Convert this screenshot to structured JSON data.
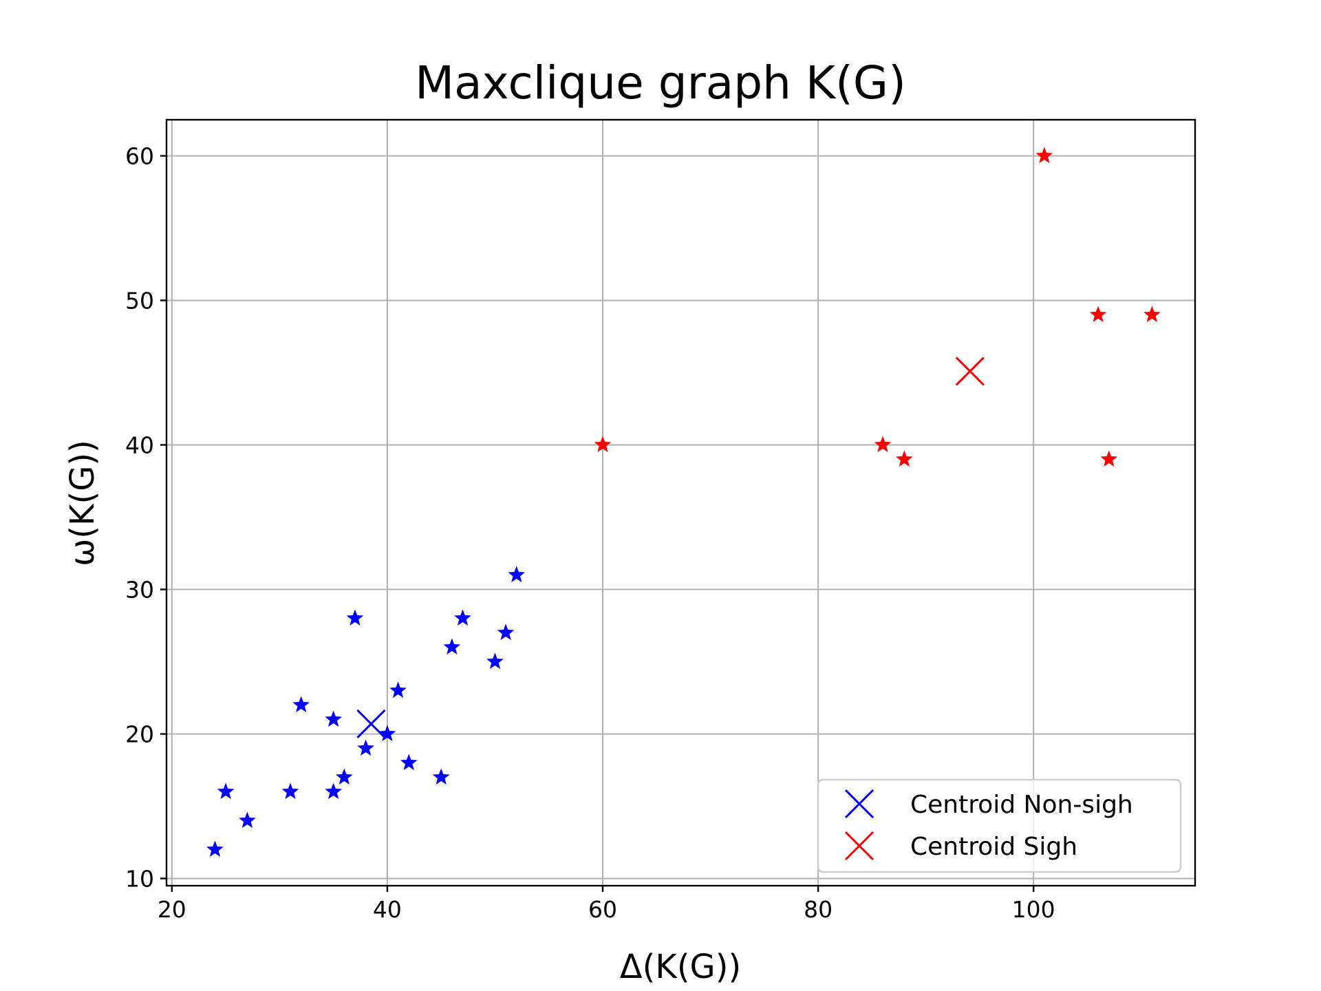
{
  "chart_data": {
    "type": "scatter",
    "title": "Maxclique graph K(G)",
    "xlabel": "Δ(K(G))",
    "ylabel": "ω(K(G))",
    "xlim": [
      19.5,
      115
    ],
    "ylim": [
      9.5,
      62.5
    ],
    "xticks": [
      20,
      40,
      60,
      80,
      100
    ],
    "yticks": [
      10,
      20,
      30,
      40,
      50,
      60
    ],
    "grid": true,
    "legend_position": "lower right",
    "series": [
      {
        "color": "#0000ff",
        "marker": "star",
        "points": [
          [
            24,
            12
          ],
          [
            25,
            16
          ],
          [
            27,
            14
          ],
          [
            31,
            16
          ],
          [
            32,
            22
          ],
          [
            35,
            21
          ],
          [
            35,
            16
          ],
          [
            36,
            17
          ],
          [
            37,
            28
          ],
          [
            38,
            19
          ],
          [
            40,
            20
          ],
          [
            41,
            23
          ],
          [
            42,
            18
          ],
          [
            45,
            17
          ],
          [
            46,
            26
          ],
          [
            47,
            28
          ],
          [
            50,
            25
          ],
          [
            51,
            27
          ],
          [
            52,
            31
          ]
        ]
      },
      {
        "color": "#ff0000",
        "marker": "star",
        "points": [
          [
            60,
            40
          ],
          [
            86,
            40
          ],
          [
            88,
            39
          ],
          [
            101,
            60
          ],
          [
            106,
            49
          ],
          [
            107,
            39
          ],
          [
            111,
            49
          ]
        ]
      },
      {
        "name": "Centroid Non-sigh",
        "color": "#0000ff",
        "marker": "x",
        "points": [
          [
            38.5,
            20.7
          ]
        ]
      },
      {
        "name": "Centroid Sigh",
        "color": "#ff0000",
        "marker": "x",
        "points": [
          [
            94.1,
            45.1
          ]
        ]
      }
    ]
  }
}
